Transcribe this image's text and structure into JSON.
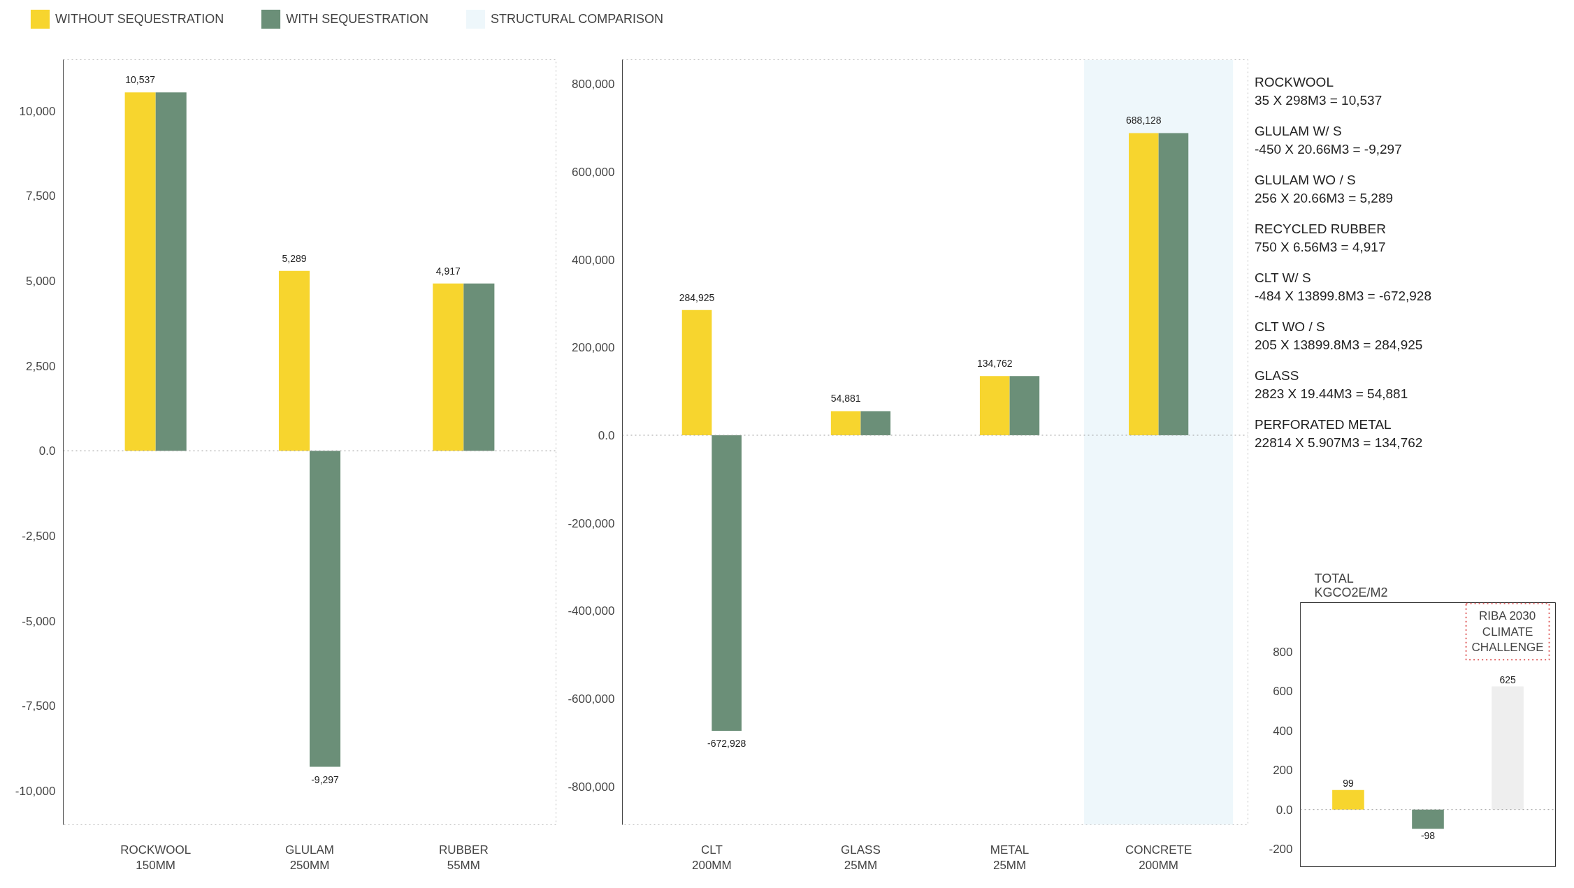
{
  "chart_data": [
    {
      "type": "bar",
      "categories": [
        "ROCKWOOL\n150MM",
        "GLULAM\n250MM",
        "RUBBER\n55MM"
      ],
      "series": [
        {
          "name": "WITHOUT SEQUESTRATION",
          "color": "#f7d52e",
          "values": [
            10537,
            5289,
            4917
          ],
          "value_labels": [
            "10,537",
            "5,289",
            "4,917"
          ]
        },
        {
          "name": "WITH SEQUESTRATION",
          "color": "#6b8f78",
          "values": [
            10537,
            -9297,
            4917
          ],
          "value_labels": [
            null,
            "-9,297",
            null
          ]
        }
      ],
      "ylim": [
        -11000,
        11500
      ],
      "yticks": [
        {
          "value": -10000,
          "label": "-10,000"
        },
        {
          "value": -7500,
          "label": "-7,500"
        },
        {
          "value": -5000,
          "label": "-5,000"
        },
        {
          "value": -2500,
          "label": "-2,500"
        },
        {
          "value": 0,
          "label": "0.0"
        },
        {
          "value": 2500,
          "label": "2,500"
        },
        {
          "value": 5000,
          "label": "5,000"
        },
        {
          "value": 7500,
          "label": "7,500"
        },
        {
          "value": 10000,
          "label": "10,000"
        }
      ],
      "ref_lines": [
        {
          "axis": "y",
          "value": 0,
          "line_style": "dotted",
          "color": "#999999"
        }
      ],
      "grid": false,
      "legend": "top"
    },
    {
      "type": "bar",
      "categories": [
        "CLT\n200MM",
        "GLASS\n25MM",
        "METAL\n25MM",
        "CONCRETE\n200MM"
      ],
      "series": [
        {
          "color": "#f7d52e",
          "values": [
            284925,
            54881,
            134762,
            688128
          ],
          "value_labels": [
            "284,925",
            "54,881",
            "134,762",
            "688,128"
          ]
        },
        {
          "color": "#6b8f78",
          "values": [
            -672928,
            54881,
            134762,
            688128
          ],
          "value_labels": [
            "-672,928",
            null,
            null,
            null
          ]
        }
      ],
      "ylim": [
        -887000,
        855000
      ],
      "yticks": [
        {
          "value": -800000,
          "label": "-800,000"
        },
        {
          "value": -600000,
          "label": "-600,000"
        },
        {
          "value": -400000,
          "label": "-400,000"
        },
        {
          "value": -200000,
          "label": "-200,000"
        },
        {
          "value": 0,
          "label": "0.0"
        },
        {
          "value": 200000,
          "label": "200,000"
        },
        {
          "value": 400000,
          "label": "400,000"
        },
        {
          "value": 600000,
          "label": "600,000"
        },
        {
          "value": 800000,
          "label": "800,000"
        }
      ],
      "bands": [
        {
          "axis": "x",
          "from": "CONCRETE\n200MM",
          "to": "CONCRETE\n200MM",
          "label": "STRUCTURAL COMPARISON",
          "color": "#eef7fb"
        }
      ],
      "ref_lines": [
        {
          "axis": "y",
          "value": 0,
          "line_style": "dotted",
          "color": "#999999"
        }
      ],
      "grid": false,
      "legend": "top"
    },
    {
      "type": "other",
      "annotations": [
        "ROCKWOOL",
        "35 X 298M3 = 10,537",
        "GLULAM  W/ S",
        " -450 X 20.66M3 = -9,297",
        "GLULAM WO / S",
        "256 X 20.66M3 = 5,289",
        "RECYCLED RUBBER",
        "750 X 6.56M3 = 4,917",
        "CLT  W/ S",
        "-484 X 13899.8M3 = -672,928",
        "CLT WO / S",
        "205 X 13899.8M3 = 284,925",
        "GLASS",
        "2823 X 19.44M3 = 54,881",
        "PERFORATED METAL",
        "22814 X 5.907M3 = 134,762"
      ]
    },
    {
      "type": "bar",
      "title": "TOTAL\nKGCO2E/M2",
      "categories": [
        null,
        null,
        null
      ],
      "values": [
        99,
        -98,
        625
      ],
      "colors": [
        "#f7d52e",
        "#6b8f78",
        "#eeeeee"
      ],
      "data_labels": true,
      "ylim": [
        -290,
        1050
      ],
      "yticks": [
        -200,
        {
          "value": 0,
          "label": "0.0"
        },
        200,
        400,
        600,
        800
      ],
      "annotations": [
        "RIBA 2030\nCLIMATE\nCHALLENGE"
      ],
      "ref_lines": [
        {
          "axis": "y",
          "value": 0,
          "line_style": "dotted",
          "color": "#999999"
        }
      ],
      "grid": false
    }
  ]
}
